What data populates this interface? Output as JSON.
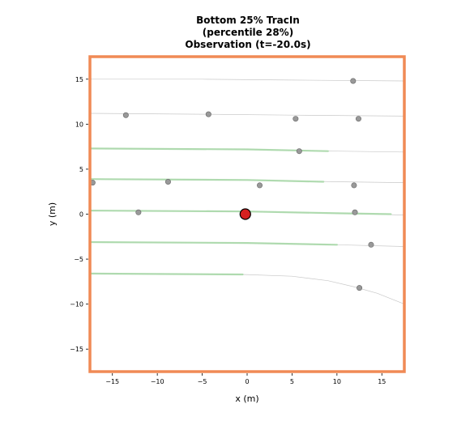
{
  "chart_data": {
    "type": "scatter",
    "title_lines": [
      "Bottom 25% TracIn",
      "(percentile 28%)",
      "Observation (t=-20.0s)"
    ],
    "xlabel": "x (m)",
    "ylabel": "y (m)",
    "xlim": [
      -17.5,
      17.5
    ],
    "ylim": [
      -17.5,
      17.5
    ],
    "xticks": [
      -15,
      -10,
      -5,
      0,
      5,
      10,
      15
    ],
    "yticks": [
      -15,
      -10,
      -5,
      0,
      5,
      10,
      15
    ],
    "xtick_labels": [
      "−15",
      "−10",
      "−5",
      "0",
      "5",
      "10",
      "15"
    ],
    "ytick_labels": [
      "−15",
      "−10",
      "−5",
      "0",
      "5",
      "10",
      "15"
    ],
    "frame_color": "#f08a55",
    "ego": {
      "x": -0.2,
      "y": 0.0,
      "color": "#d62020"
    },
    "agents_color": "#999999",
    "agents": [
      {
        "x": 11.8,
        "y": 14.8
      },
      {
        "x": -13.5,
        "y": 11.0
      },
      {
        "x": -4.3,
        "y": 11.1
      },
      {
        "x": 5.4,
        "y": 10.6
      },
      {
        "x": 12.4,
        "y": 10.6
      },
      {
        "x": 5.8,
        "y": 7.0
      },
      {
        "x": -17.2,
        "y": 3.5
      },
      {
        "x": -8.8,
        "y": 3.6
      },
      {
        "x": 1.4,
        "y": 3.2
      },
      {
        "x": 11.9,
        "y": 3.2
      },
      {
        "x": -12.1,
        "y": 0.2
      },
      {
        "x": 12.0,
        "y": 0.2
      },
      {
        "x": 13.8,
        "y": -3.4
      },
      {
        "x": 12.5,
        "y": -8.2
      }
    ],
    "lane_color": "#c8c8c8",
    "lanes": [
      [
        [
          -17.5,
          15.0
        ],
        [
          -5,
          15.0
        ],
        [
          5,
          14.9
        ],
        [
          17.5,
          14.8
        ]
      ],
      [
        [
          -17.5,
          11.2
        ],
        [
          -5,
          11.1
        ],
        [
          5,
          11.0
        ],
        [
          17.5,
          10.9
        ]
      ],
      [
        [
          -17.5,
          7.3
        ],
        [
          0,
          7.2
        ],
        [
          10,
          7.0
        ],
        [
          17.5,
          6.9
        ]
      ],
      [
        [
          -17.5,
          3.9
        ],
        [
          0,
          3.8
        ],
        [
          10,
          3.6
        ],
        [
          17.5,
          3.5
        ]
      ],
      [
        [
          -17.5,
          0.4
        ],
        [
          0,
          0.3
        ],
        [
          10,
          0.1
        ],
        [
          17.5,
          -0.1
        ]
      ],
      [
        [
          -17.5,
          -3.1
        ],
        [
          0,
          -3.2
        ],
        [
          10,
          -3.4
        ],
        [
          17.5,
          -3.6
        ]
      ],
      [
        [
          -17.5,
          -6.6
        ],
        [
          -0.5,
          -6.7
        ],
        [
          5,
          -6.9
        ],
        [
          9,
          -7.4
        ],
        [
          12,
          -8.1
        ],
        [
          14.5,
          -8.8
        ],
        [
          17.5,
          -10.0
        ]
      ]
    ],
    "path_color": "#a8d8a8",
    "paths": [
      [
        [
          -17.5,
          7.3
        ],
        [
          0,
          7.2
        ],
        [
          9,
          7.0
        ]
      ],
      [
        [
          -17.5,
          3.9
        ],
        [
          0,
          3.8
        ],
        [
          8.5,
          3.6
        ]
      ],
      [
        [
          -17.5,
          0.4
        ],
        [
          0,
          0.3
        ],
        [
          10,
          0.1
        ],
        [
          16,
          0.0
        ]
      ],
      [
        [
          -17.5,
          -3.1
        ],
        [
          0,
          -3.2
        ],
        [
          10,
          -3.4
        ]
      ],
      [
        [
          -17.5,
          -6.6
        ],
        [
          -0.5,
          -6.7
        ]
      ]
    ]
  }
}
